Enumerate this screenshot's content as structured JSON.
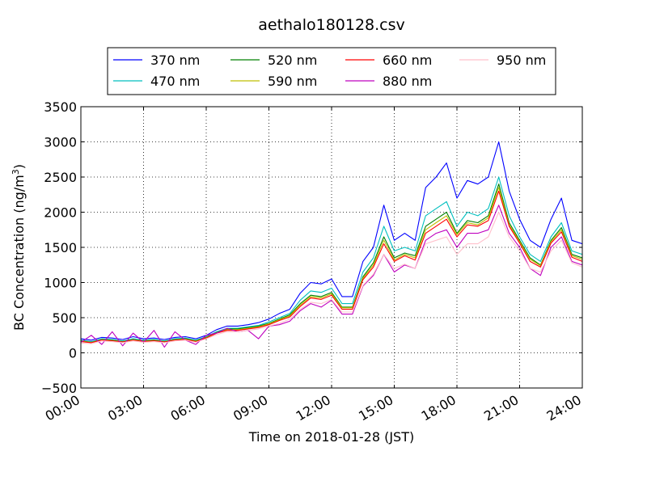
{
  "chart_data": {
    "type": "line",
    "title": "aethalo180128.csv",
    "xlabel": "Time on 2018-01-28 (JST)",
    "ylabel": {
      "prefix": "BC Concentration (ng/m",
      "superscript": "3",
      "suffix": ")"
    },
    "xlim": [
      "00:00",
      "24:00"
    ],
    "ylim": [
      -500,
      3500
    ],
    "x_ticks": [
      "00:00",
      "03:00",
      "06:00",
      "09:00",
      "12:00",
      "15:00",
      "18:00",
      "21:00",
      "24:00"
    ],
    "y_ticks": [
      "−500",
      "0",
      "500",
      "1000",
      "1500",
      "2000",
      "2500",
      "3000",
      "3500"
    ],
    "grid": true,
    "legend_placement": "top-center",
    "x": [
      "00:00",
      "00:30",
      "01:00",
      "01:30",
      "02:00",
      "02:30",
      "03:00",
      "03:30",
      "04:00",
      "04:30",
      "05:00",
      "05:30",
      "06:00",
      "06:30",
      "07:00",
      "07:30",
      "08:00",
      "08:30",
      "09:00",
      "09:30",
      "10:00",
      "10:30",
      "11:00",
      "11:30",
      "12:00",
      "12:30",
      "13:00",
      "13:30",
      "14:00",
      "14:30",
      "15:00",
      "15:30",
      "16:00",
      "16:30",
      "17:00",
      "17:30",
      "18:00",
      "18:30",
      "19:00",
      "19:30",
      "20:00",
      "20:30",
      "21:00",
      "21:30",
      "22:00",
      "22:30",
      "23:00",
      "23:30",
      "24:00"
    ],
    "series": [
      {
        "name": "370 nm",
        "color": "#0000ff",
        "values": [
          200,
          180,
          220,
          210,
          190,
          230,
          200,
          210,
          190,
          220,
          230,
          200,
          250,
          330,
          380,
          380,
          400,
          430,
          480,
          560,
          620,
          850,
          1000,
          980,
          1050,
          800,
          800,
          1300,
          1500,
          2100,
          1600,
          1700,
          1600,
          2350,
          2500,
          2700,
          2200,
          2450,
          2400,
          2500,
          3000,
          2300,
          1900,
          1600,
          1500,
          1900,
          2200,
          1600,
          1550
        ]
      },
      {
        "name": "470 nm",
        "color": "#00bfbf",
        "values": [
          180,
          160,
          200,
          190,
          170,
          200,
          180,
          190,
          170,
          200,
          210,
          180,
          230,
          300,
          350,
          350,
          370,
          390,
          440,
          500,
          560,
          750,
          880,
          860,
          920,
          700,
          700,
          1150,
          1350,
          1800,
          1450,
          1500,
          1450,
          1950,
          2050,
          2150,
          1800,
          2000,
          1950,
          2050,
          2500,
          1950,
          1650,
          1400,
          1300,
          1650,
          1850,
          1450,
          1400
        ]
      },
      {
        "name": "520 nm",
        "color": "#008000",
        "values": [
          170,
          150,
          190,
          180,
          160,
          190,
          170,
          180,
          160,
          190,
          200,
          170,
          220,
          290,
          340,
          340,
          360,
          380,
          420,
          480,
          540,
          700,
          820,
          800,
          860,
          650,
          650,
          1080,
          1280,
          1650,
          1350,
          1420,
          1380,
          1800,
          1900,
          2000,
          1700,
          1880,
          1850,
          1950,
          2400,
          1850,
          1600,
          1350,
          1250,
          1600,
          1780,
          1400,
          1350
        ]
      },
      {
        "name": "590 nm",
        "color": "#bfbf00",
        "values": [
          165,
          148,
          185,
          175,
          158,
          185,
          165,
          175,
          158,
          185,
          195,
          165,
          215,
          285,
          330,
          330,
          350,
          370,
          410,
          470,
          525,
          680,
          800,
          780,
          840,
          640,
          640,
          1060,
          1250,
          1600,
          1320,
          1400,
          1350,
          1750,
          1850,
          1950,
          1680,
          1850,
          1820,
          1920,
          2350,
          1820,
          1580,
          1330,
          1240,
          1580,
          1750,
          1380,
          1330
        ]
      },
      {
        "name": "660 nm",
        "color": "#ff0000",
        "values": [
          160,
          145,
          180,
          170,
          155,
          180,
          160,
          170,
          155,
          180,
          190,
          160,
          210,
          280,
          320,
          320,
          340,
          360,
          400,
          460,
          510,
          660,
          780,
          760,
          820,
          620,
          620,
          1040,
          1220,
          1550,
          1300,
          1380,
          1320,
          1700,
          1800,
          1900,
          1650,
          1820,
          1800,
          1880,
          2300,
          1800,
          1560,
          1300,
          1220,
          1560,
          1720,
          1360,
          1300
        ]
      },
      {
        "name": "880 nm",
        "color": "#bf00bf",
        "values": [
          150,
          250,
          120,
          300,
          100,
          280,
          150,
          320,
          80,
          300,
          180,
          120,
          250,
          280,
          350,
          300,
          320,
          200,
          380,
          400,
          450,
          600,
          700,
          650,
          750,
          550,
          550,
          950,
          1100,
          1400,
          1150,
          1250,
          1200,
          1600,
          1700,
          1750,
          1500,
          1700,
          1700,
          1750,
          2100,
          1700,
          1500,
          1200,
          1100,
          1500,
          1650,
          1300,
          1250
        ]
      },
      {
        "name": "950 nm",
        "color": "#ffc0cb",
        "values": [
          140,
          130,
          170,
          160,
          145,
          170,
          150,
          160,
          145,
          170,
          180,
          150,
          200,
          260,
          300,
          300,
          320,
          340,
          380,
          420,
          480,
          620,
          720,
          700,
          760,
          580,
          580,
          960,
          1120,
          1400,
          1200,
          1260,
          1200,
          1550,
          1600,
          1650,
          1400,
          1550,
          1550,
          1650,
          2000,
          1650,
          1450,
          1200,
          1150,
          1450,
          1600,
          1280,
          1220
        ]
      }
    ]
  }
}
